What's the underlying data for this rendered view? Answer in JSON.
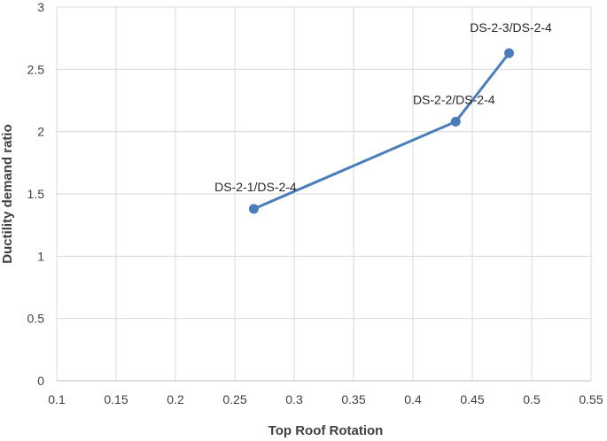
{
  "chart_data": {
    "type": "scatter",
    "title": "",
    "xlabel": "Top Roof Rotation",
    "ylabel": "Ductility demand ratio",
    "xlim": [
      0.1,
      0.55
    ],
    "ylim": [
      0,
      3
    ],
    "xticks": [
      "0.1",
      "0.15",
      "0.2",
      "0.25",
      "0.3",
      "0.35",
      "0.4",
      "0.45",
      "0.5",
      "0.55"
    ],
    "yticks": [
      "0",
      "0.5",
      "1",
      "1.5",
      "2",
      "2.5",
      "3"
    ],
    "grid": true,
    "series": [
      {
        "color": "#4a7ebb",
        "points": [
          {
            "x": 0.266,
            "y": 1.38,
            "label": "DS-2-1/DS-2-4"
          },
          {
            "x": 0.436,
            "y": 2.08,
            "label": "DS-2-2/DS-2-4"
          },
          {
            "x": 0.481,
            "y": 2.63,
            "label": "DS-2-3/DS-2-4"
          }
        ]
      }
    ]
  }
}
